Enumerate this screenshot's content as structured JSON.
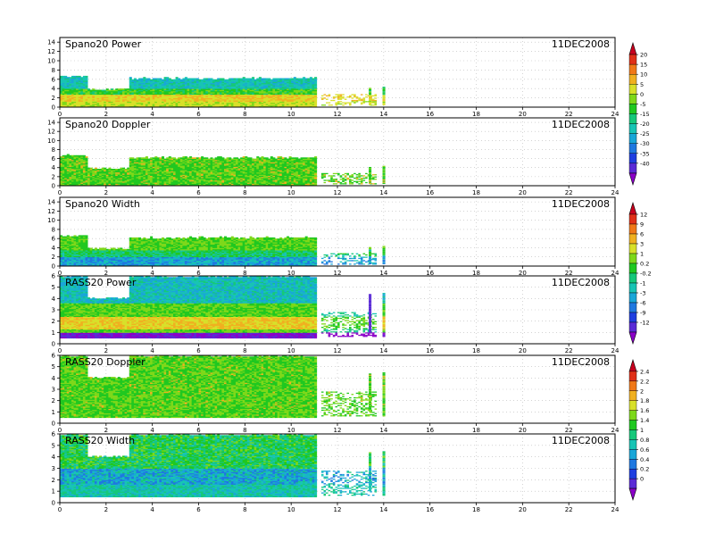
{
  "date_label": "11DEC2008",
  "palette": [
    "#8b00c8",
    "#5a2bd6",
    "#1f3fe0",
    "#1f78e0",
    "#19a6d8",
    "#18c4b4",
    "#16c87a",
    "#20c820",
    "#7ed81a",
    "#d8e02a",
    "#f0b020",
    "#f07818",
    "#e03018",
    "#c8001e"
  ],
  "chart_data": [
    {
      "type": "heatmap",
      "title": "Spano20 Power",
      "x": {
        "range": [
          0,
          24
        ],
        "ticks": [
          "0",
          "2",
          "4",
          "6",
          "8",
          "10",
          "12",
          "14",
          "16",
          "18",
          "20",
          "22",
          "24"
        ]
      },
      "y": {
        "range": [
          0,
          15
        ],
        "ticks": [
          "0",
          "2",
          "4",
          "6",
          "8",
          "10",
          "12",
          "14"
        ]
      },
      "data_extent": {
        "x": [
          0,
          14
        ],
        "y": [
          0,
          7
        ]
      },
      "colorbar": {
        "group": "power",
        "labels": [
          "20",
          "15",
          "10",
          "5",
          "0",
          "-5",
          "-15",
          "-20",
          "-25",
          "-30",
          "-35",
          "-40"
        ]
      },
      "grid": true
    },
    {
      "type": "heatmap",
      "title": "Spano20 Doppler",
      "x": {
        "range": [
          0,
          24
        ],
        "ticks": [
          "0",
          "2",
          "4",
          "6",
          "8",
          "10",
          "12",
          "14",
          "16",
          "18",
          "20",
          "22",
          "24"
        ]
      },
      "y": {
        "range": [
          0,
          15
        ],
        "ticks": [
          "0",
          "2",
          "4",
          "6",
          "8",
          "10",
          "12",
          "14"
        ]
      },
      "data_extent": {
        "x": [
          0,
          14
        ],
        "y": [
          0,
          7
        ]
      },
      "colorbar": {
        "group": "power"
      },
      "grid": true
    },
    {
      "type": "heatmap",
      "title": "Spano20 Width",
      "x": {
        "range": [
          0,
          24
        ],
        "ticks": [
          "0",
          "2",
          "4",
          "6",
          "8",
          "10",
          "12",
          "14",
          "16",
          "18",
          "20",
          "22",
          "24"
        ]
      },
      "y": {
        "range": [
          0,
          15
        ],
        "ticks": [
          "0",
          "2",
          "4",
          "6",
          "8",
          "10",
          "12",
          "14"
        ]
      },
      "data_extent": {
        "x": [
          0,
          14
        ],
        "y": [
          0,
          7
        ]
      },
      "colorbar": {
        "group": "doppler",
        "labels": [
          "12",
          "9",
          "6",
          "3",
          "1",
          "0.2",
          "-0.2",
          "-1",
          "-3",
          "-6",
          "-9",
          "-12"
        ]
      },
      "grid": true
    },
    {
      "type": "heatmap",
      "title": "RASS20 Power",
      "x": {
        "range": [
          0,
          24
        ],
        "ticks": [
          "0",
          "2",
          "4",
          "6",
          "8",
          "10",
          "12",
          "14",
          "16",
          "18",
          "20",
          "22",
          "24"
        ]
      },
      "y": {
        "range": [
          0,
          6
        ],
        "ticks": [
          "0",
          "1",
          "2",
          "3",
          "4",
          "5",
          "6"
        ]
      },
      "data_extent": {
        "x": [
          0,
          14
        ],
        "y": [
          0.5,
          6
        ]
      },
      "colorbar": {
        "group": "doppler"
      },
      "grid": true
    },
    {
      "type": "heatmap",
      "title": "RASS20 Doppler",
      "x": {
        "range": [
          0,
          24
        ],
        "ticks": [
          "0",
          "2",
          "4",
          "6",
          "8",
          "10",
          "12",
          "14",
          "16",
          "18",
          "20",
          "22",
          "24"
        ]
      },
      "y": {
        "range": [
          0,
          6
        ],
        "ticks": [
          "0",
          "1",
          "2",
          "3",
          "4",
          "5",
          "6"
        ]
      },
      "data_extent": {
        "x": [
          0,
          14
        ],
        "y": [
          0.5,
          6
        ]
      },
      "colorbar": {
        "group": "width",
        "labels": [
          "2.4",
          "2.2",
          "2",
          "1.8",
          "1.6",
          "1.4",
          "1",
          "0.8",
          "0.6",
          "0.4",
          "0.2",
          "0"
        ]
      },
      "grid": true
    },
    {
      "type": "heatmap",
      "title": "RASS20 Width",
      "x": {
        "range": [
          0,
          24
        ],
        "ticks": [
          "0",
          "2",
          "4",
          "6",
          "8",
          "10",
          "12",
          "14",
          "16",
          "18",
          "20",
          "22",
          "24"
        ]
      },
      "y": {
        "range": [
          0,
          6
        ],
        "ticks": [
          "0",
          "1",
          "2",
          "3",
          "4",
          "5",
          "6"
        ]
      },
      "data_extent": {
        "x": [
          0,
          14
        ],
        "y": [
          0.5,
          6
        ]
      },
      "colorbar": {
        "group": "width"
      },
      "grid": true
    }
  ]
}
